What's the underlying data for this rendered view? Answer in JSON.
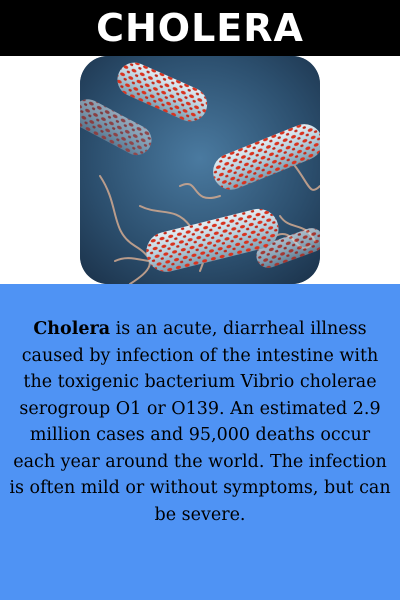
{
  "header": {
    "title": "CHOLERA"
  },
  "image": {
    "subject": "cholera bacteria illustration",
    "colors": {
      "background": "#2c4f6e",
      "bacteria_body": "#b9cfdc",
      "bacteria_spots": "#d8331f",
      "flagella": "#c9a58f"
    }
  },
  "description": {
    "term": "Cholera",
    "text": " is an acute, diarrheal illness caused by infection of  the intestine with the toxigenic bacterium Vibrio cholerae serogroup O1 or O139. An estimated 2.9 million cases and 95,000 deaths occur each year around the world. The infection is often mild or without symptoms, but can be severe."
  },
  "colors": {
    "header_bg": "#000000",
    "header_text": "#ffffff",
    "panel_bg": "#4f93f4"
  }
}
